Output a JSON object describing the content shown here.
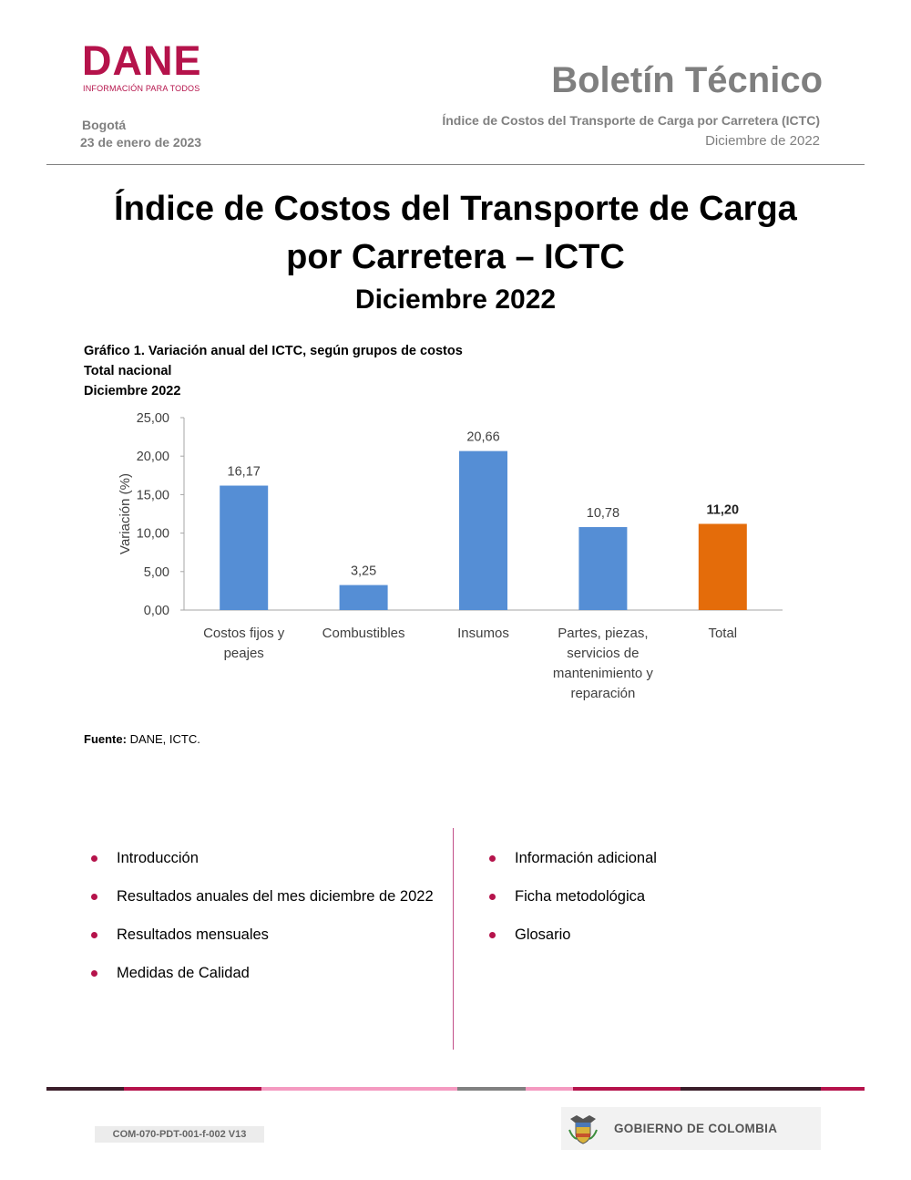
{
  "header": {
    "logo_word": "DANE",
    "logo_tagline": "INFORMACIÓN PARA TODOS",
    "city": "Bogotá",
    "date": "23 de enero de 2023",
    "bulletin": "Boletín Técnico",
    "subtitle": "Índice de Costos del Transporte de Carga por Carretera (ICTC)",
    "period": "Diciembre de 2022"
  },
  "title": {
    "line1": "Índice de Costos del Transporte de Carga",
    "line2": "por Carretera – ICTC",
    "line3": "Diciembre 2022"
  },
  "chart_caption": {
    "line1": "Gráfico 1. Variación anual del ICTC, según grupos de costos",
    "line2": "Total nacional",
    "line3": "Diciembre 2022"
  },
  "chart_data": {
    "type": "bar",
    "title": "",
    "xlabel": "",
    "ylabel": "Variación (%)",
    "ylim": [
      0,
      25
    ],
    "yticks": [
      "0,00",
      "5,00",
      "10,00",
      "15,00",
      "20,00",
      "25,00"
    ],
    "categories": [
      "Costos fijos y peajes",
      "Combustibles",
      "Insumos",
      "Partes, piezas, servicios de mantenimiento y reparación",
      "Total"
    ],
    "category_lines": [
      [
        "Costos fijos y",
        "peajes"
      ],
      [
        "Combustibles"
      ],
      [
        "Insumos"
      ],
      [
        "Partes, piezas,",
        "servicios de",
        "mantenimiento y",
        "reparación"
      ],
      [
        "Total"
      ]
    ],
    "values": [
      16.17,
      3.25,
      20.66,
      10.78,
      11.2
    ],
    "value_labels": [
      "16,17",
      "3,25",
      "20,66",
      "10,78",
      "11,20"
    ],
    "colors": [
      "#558ed5",
      "#558ed5",
      "#558ed5",
      "#558ed5",
      "#e46c0a"
    ],
    "grid": false,
    "legend": "none"
  },
  "source": {
    "label": "Fuente:",
    "text": " DANE, ICTC."
  },
  "contents": {
    "left": [
      "Introducción",
      "Resultados anuales del mes diciembre de 2022",
      "Resultados mensuales",
      "Medidas de Calidad"
    ],
    "right": [
      "Información adicional",
      "Ficha metodológica",
      "Glosario"
    ],
    "bullet_color": "#b5134b"
  },
  "footer": {
    "doc_code": "COM-070-PDT-001-f-002 V13",
    "government": "GOBIERNO DE COLOMBIA",
    "band_colors": [
      "#3b1e2a",
      "#b5134b",
      "#f49ac1",
      "#808080",
      "#f49ac1",
      "#b5134b",
      "#3b1e2a",
      "#b5134b"
    ]
  },
  "brand_color": "#b5134b"
}
